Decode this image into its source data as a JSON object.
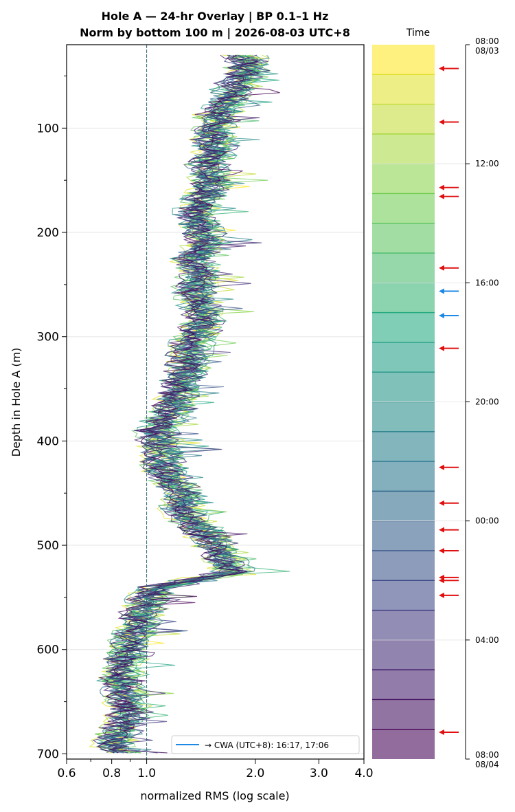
{
  "chart_data": [
    {
      "type": "line",
      "title_line1": "Hole A — 24-hr Overlay  |  BP 0.1–1 Hz",
      "title_line2": "Norm by bottom 100 m  |  2026-08-03 UTC+8",
      "xlabel": "normalized RMS  (log scale)",
      "ylabel": "Depth in Hole A (m)",
      "xscale": "log",
      "xlim": [
        0.6,
        4.0
      ],
      "ylim": [
        705,
        20
      ],
      "y_inverted": true,
      "grid": "horizontal",
      "x_ticks": [
        {
          "value": 0.6,
          "label": "0.6"
        },
        {
          "value": 0.8,
          "label": "0.8"
        },
        {
          "value": 1.0,
          "label": "1.0"
        },
        {
          "value": 2.0,
          "label": "2.0"
        },
        {
          "value": 3.0,
          "label": "3.0"
        },
        {
          "value": 4.0,
          "label": "4.0"
        }
      ],
      "y_ticks": [
        {
          "value": 100,
          "label": "100"
        },
        {
          "value": 200,
          "label": "200"
        },
        {
          "value": 300,
          "label": "300"
        },
        {
          "value": 400,
          "label": "400"
        },
        {
          "value": 500,
          "label": "500"
        },
        {
          "value": 600,
          "label": "600"
        },
        {
          "value": 700,
          "label": "700"
        }
      ],
      "reference_line": {
        "x": 1.0,
        "style": "dashed"
      },
      "depth": [
        30,
        45,
        60,
        75,
        90,
        105,
        120,
        135,
        150,
        165,
        180,
        195,
        210,
        225,
        240,
        255,
        270,
        285,
        300,
        315,
        330,
        345,
        360,
        375,
        390,
        405,
        420,
        435,
        450,
        465,
        480,
        495,
        510,
        525,
        540,
        555,
        570,
        585,
        600,
        615,
        630,
        645,
        660,
        675,
        690,
        700
      ],
      "profile_mean": [
        1.85,
        1.9,
        1.75,
        1.65,
        1.55,
        1.5,
        1.55,
        1.45,
        1.5,
        1.45,
        1.35,
        1.4,
        1.45,
        1.35,
        1.4,
        1.35,
        1.4,
        1.45,
        1.35,
        1.3,
        1.3,
        1.25,
        1.2,
        1.15,
        1.05,
        1.1,
        1.1,
        1.15,
        1.25,
        1.25,
        1.35,
        1.5,
        1.6,
        1.75,
        1.05,
        1.0,
        0.95,
        0.92,
        0.88,
        0.85,
        0.84,
        0.86,
        0.9,
        0.85,
        0.8,
        0.85
      ],
      "series_count": 24,
      "series_start_hour": 8,
      "colormap": [
        "#fde725",
        "#7ad151",
        "#22a884",
        "#2a788e",
        "#414487",
        "#440154"
      ],
      "legend": {
        "placement": "bottom-right",
        "label": "→ CWA (UTC+8): 16:17, 17:06",
        "color": "#1e88e5"
      }
    },
    {
      "type": "colorbar",
      "title": "Time",
      "tick_labels": [
        {
          "hour": 0,
          "line1": "08:00",
          "line2": "08/03"
        },
        {
          "hour": 4,
          "line1": "12:00",
          "line2": ""
        },
        {
          "hour": 8,
          "line1": "16:00",
          "line2": ""
        },
        {
          "hour": 12,
          "line1": "20:00",
          "line2": ""
        },
        {
          "hour": 16,
          "line1": "00:00",
          "line2": ""
        },
        {
          "hour": 20,
          "line1": "04:00",
          "line2": ""
        },
        {
          "hour": 24,
          "line1": "08:00",
          "line2": "08/04"
        }
      ],
      "bands": 24,
      "colors_top_to_bottom": [
        "#fde725",
        "#d0e11c",
        "#a0da39",
        "#73d056",
        "#4ac16d",
        "#2db27d",
        "#1fa187",
        "#21918c",
        "#277f8e",
        "#2e6e8e",
        "#365c8d",
        "#3f4889",
        "#46327e",
        "#481b6d",
        "#440154"
      ],
      "event_arrows_hours": [
        0.8,
        2.6,
        4.8,
        5.1,
        7.5,
        8.28,
        9.1,
        10.2,
        14.2,
        15.4,
        16.3,
        17.0,
        17.9,
        18.0,
        18.5,
        23.1
      ],
      "cwa_arrows_hours": [
        8.28,
        9.1
      ]
    }
  ]
}
